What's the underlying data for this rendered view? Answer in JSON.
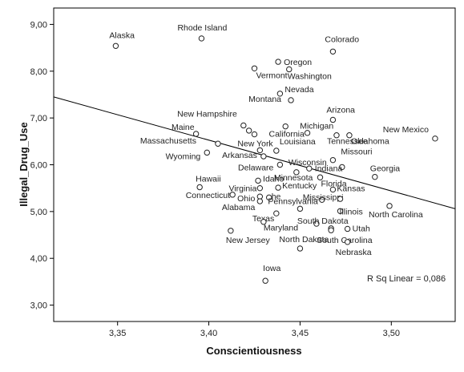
{
  "chart_data": {
    "type": "scatter",
    "xlabel": "Conscientiousness",
    "ylabel": "Illegal_Drug_Use",
    "xlim": [
      3.315,
      3.535
    ],
    "ylim": [
      2.65,
      9.35
    ],
    "x_ticks": [
      3.35,
      3.4,
      3.45,
      3.5
    ],
    "x_tick_labels": [
      "3,35",
      "3,40",
      "3,45",
      "3,50"
    ],
    "y_ticks": [
      3,
      4,
      5,
      6,
      7,
      8,
      9
    ],
    "y_tick_labels": [
      "3,00",
      "4,00",
      "5,00",
      "6,00",
      "7,00",
      "8,00",
      "9,00"
    ],
    "points": [
      {
        "label": "Alaska",
        "x": 3.349,
        "y": 8.54
      },
      {
        "label": "Rhode Island",
        "x": 3.396,
        "y": 8.7
      },
      {
        "label": "Colorado",
        "x": 3.468,
        "y": 8.42
      },
      {
        "label": "Oregon",
        "x": 3.438,
        "y": 8.2
      },
      {
        "label": "Vermont",
        "x": 3.425,
        "y": 8.06
      },
      {
        "label": "Washington",
        "x": 3.444,
        "y": 8.04
      },
      {
        "label": "Nevada",
        "x": 3.439,
        "y": 7.52
      },
      {
        "label": "Montana",
        "x": 3.445,
        "y": 7.38
      },
      {
        "label": "Arizona",
        "x": 3.468,
        "y": 6.96
      },
      {
        "label": "New Mexico",
        "x": 3.524,
        "y": 6.56
      },
      {
        "label": "New Hampshire",
        "x": 3.419,
        "y": 6.84
      },
      {
        "label": "Michigan",
        "x": 3.442,
        "y": 6.82
      },
      {
        "label": "Maine",
        "x": 3.393,
        "y": 6.66
      },
      {
        "label": "California",
        "x": 3.425,
        "y": 6.65
      },
      {
        "label": "",
        "x": 3.422,
        "y": 6.73
      },
      {
        "label": "",
        "x": 3.454,
        "y": 6.68
      },
      {
        "label": "Tennessee",
        "x": 3.47,
        "y": 6.63
      },
      {
        "label": "Oklahoma",
        "x": 3.477,
        "y": 6.63
      },
      {
        "label": "Massachusetts",
        "x": 3.405,
        "y": 6.45
      },
      {
        "label": "New York",
        "x": 3.428,
        "y": 6.31
      },
      {
        "label": "Louisiana",
        "x": 3.437,
        "y": 6.3
      },
      {
        "label": "Arkansas",
        "x": 3.43,
        "y": 6.18
      },
      {
        "label": "Wyoming",
        "x": 3.399,
        "y": 6.26
      },
      {
        "label": "Missouri",
        "x": 3.468,
        "y": 6.1
      },
      {
        "label": "Delaware",
        "x": 3.439,
        "y": 6.0
      },
      {
        "label": "Wisconsin",
        "x": 3.455,
        "y": 5.92
      },
      {
        "label": "Indiana",
        "x": 3.473,
        "y": 5.95
      },
      {
        "label": "Georgia",
        "x": 3.491,
        "y": 5.74
      },
      {
        "label": "Minnesota",
        "x": 3.448,
        "y": 5.84
      },
      {
        "label": "Florida",
        "x": 3.461,
        "y": 5.73
      },
      {
        "label": "Hawaii",
        "x": 3.395,
        "y": 5.52
      },
      {
        "label": "Idaho",
        "x": 3.427,
        "y": 5.66
      },
      {
        "label": "Virginia",
        "x": 3.428,
        "y": 5.5
      },
      {
        "label": "Kentucky",
        "x": 3.438,
        "y": 5.51
      },
      {
        "label": "Kansas",
        "x": 3.468,
        "y": 5.47
      },
      {
        "label": "Connecticut",
        "x": 3.413,
        "y": 5.36
      },
      {
        "label": "Ohio",
        "x": 3.428,
        "y": 5.32
      },
      {
        "label": "he",
        "x": 3.433,
        "y": 5.3
      },
      {
        "label": "Mississippi",
        "x": 3.462,
        "y": 5.25
      },
      {
        "label": "",
        "x": 3.472,
        "y": 5.27
      },
      {
        "label": "Alabama",
        "x": 3.428,
        "y": 5.22
      },
      {
        "label": "Pennsylvania",
        "x": 3.45,
        "y": 5.06
      },
      {
        "label": "North Carolina",
        "x": 3.499,
        "y": 5.12
      },
      {
        "label": "Illinois",
        "x": 3.472,
        "y": 5.01
      },
      {
        "label": "Texas",
        "x": 3.437,
        "y": 4.96
      },
      {
        "label": "Maryland",
        "x": 3.43,
        "y": 4.78
      },
      {
        "label": "South Dakota",
        "x": 3.459,
        "y": 4.74
      },
      {
        "label": "Utah",
        "x": 3.476,
        "y": 4.63
      },
      {
        "label": "",
        "x": 3.467,
        "y": 4.64
      },
      {
        "label": "South Carolina",
        "x": 3.467,
        "y": 4.6
      },
      {
        "label": "New Jersey",
        "x": 3.412,
        "y": 4.59
      },
      {
        "label": "North Dakota",
        "x": 3.45,
        "y": 4.21
      },
      {
        "label": "Nebraska",
        "x": 3.476,
        "y": 4.35
      },
      {
        "label": "Iowa",
        "x": 3.431,
        "y": 3.52
      }
    ],
    "fit_line": {
      "x": [
        3.315,
        3.535
      ],
      "y": [
        7.45,
        5.06
      ]
    },
    "annotation": "R Sq Linear = 0,086",
    "grid": false,
    "legend": "none"
  }
}
